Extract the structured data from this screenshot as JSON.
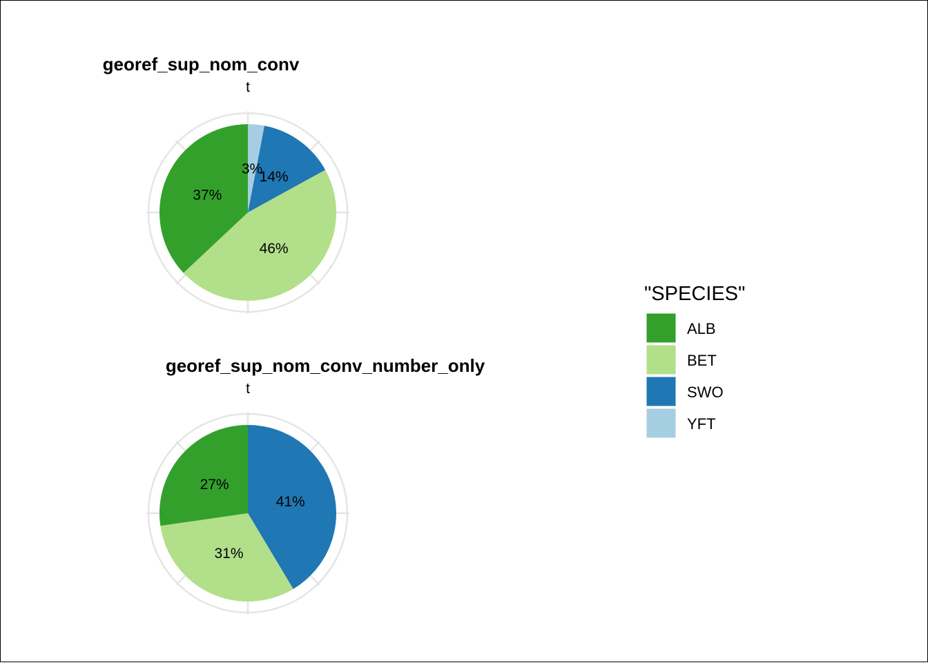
{
  "chart_data": [
    {
      "type": "pie",
      "title": "georef_sup_nom_conv",
      "subtitle": "t",
      "slices": [
        {
          "category": "YFT",
          "value": 3,
          "label": "3%"
        },
        {
          "category": "SWO",
          "value": 14,
          "label": "14%"
        },
        {
          "category": "BET",
          "value": 46,
          "label": "46%"
        },
        {
          "category": "ALB",
          "value": 37,
          "label": "37%"
        }
      ]
    },
    {
      "type": "pie",
      "title": "georef_sup_nom_conv_number_only",
      "subtitle": "t",
      "slices": [
        {
          "category": "SWO",
          "value": 41,
          "label": "41%"
        },
        {
          "category": "BET",
          "value": 31,
          "label": "31%"
        },
        {
          "category": "ALB",
          "value": 27,
          "label": "27%"
        }
      ]
    }
  ],
  "legend": {
    "title": "\"SPECIES\"",
    "placement": "right",
    "items": [
      {
        "label": "ALB",
        "color": "#33a02c"
      },
      {
        "label": "BET",
        "color": "#b2df8a"
      },
      {
        "label": "SWO",
        "color": "#1f78b4"
      },
      {
        "label": "YFT",
        "color": "#a6cee3"
      }
    ]
  },
  "grid": true
}
